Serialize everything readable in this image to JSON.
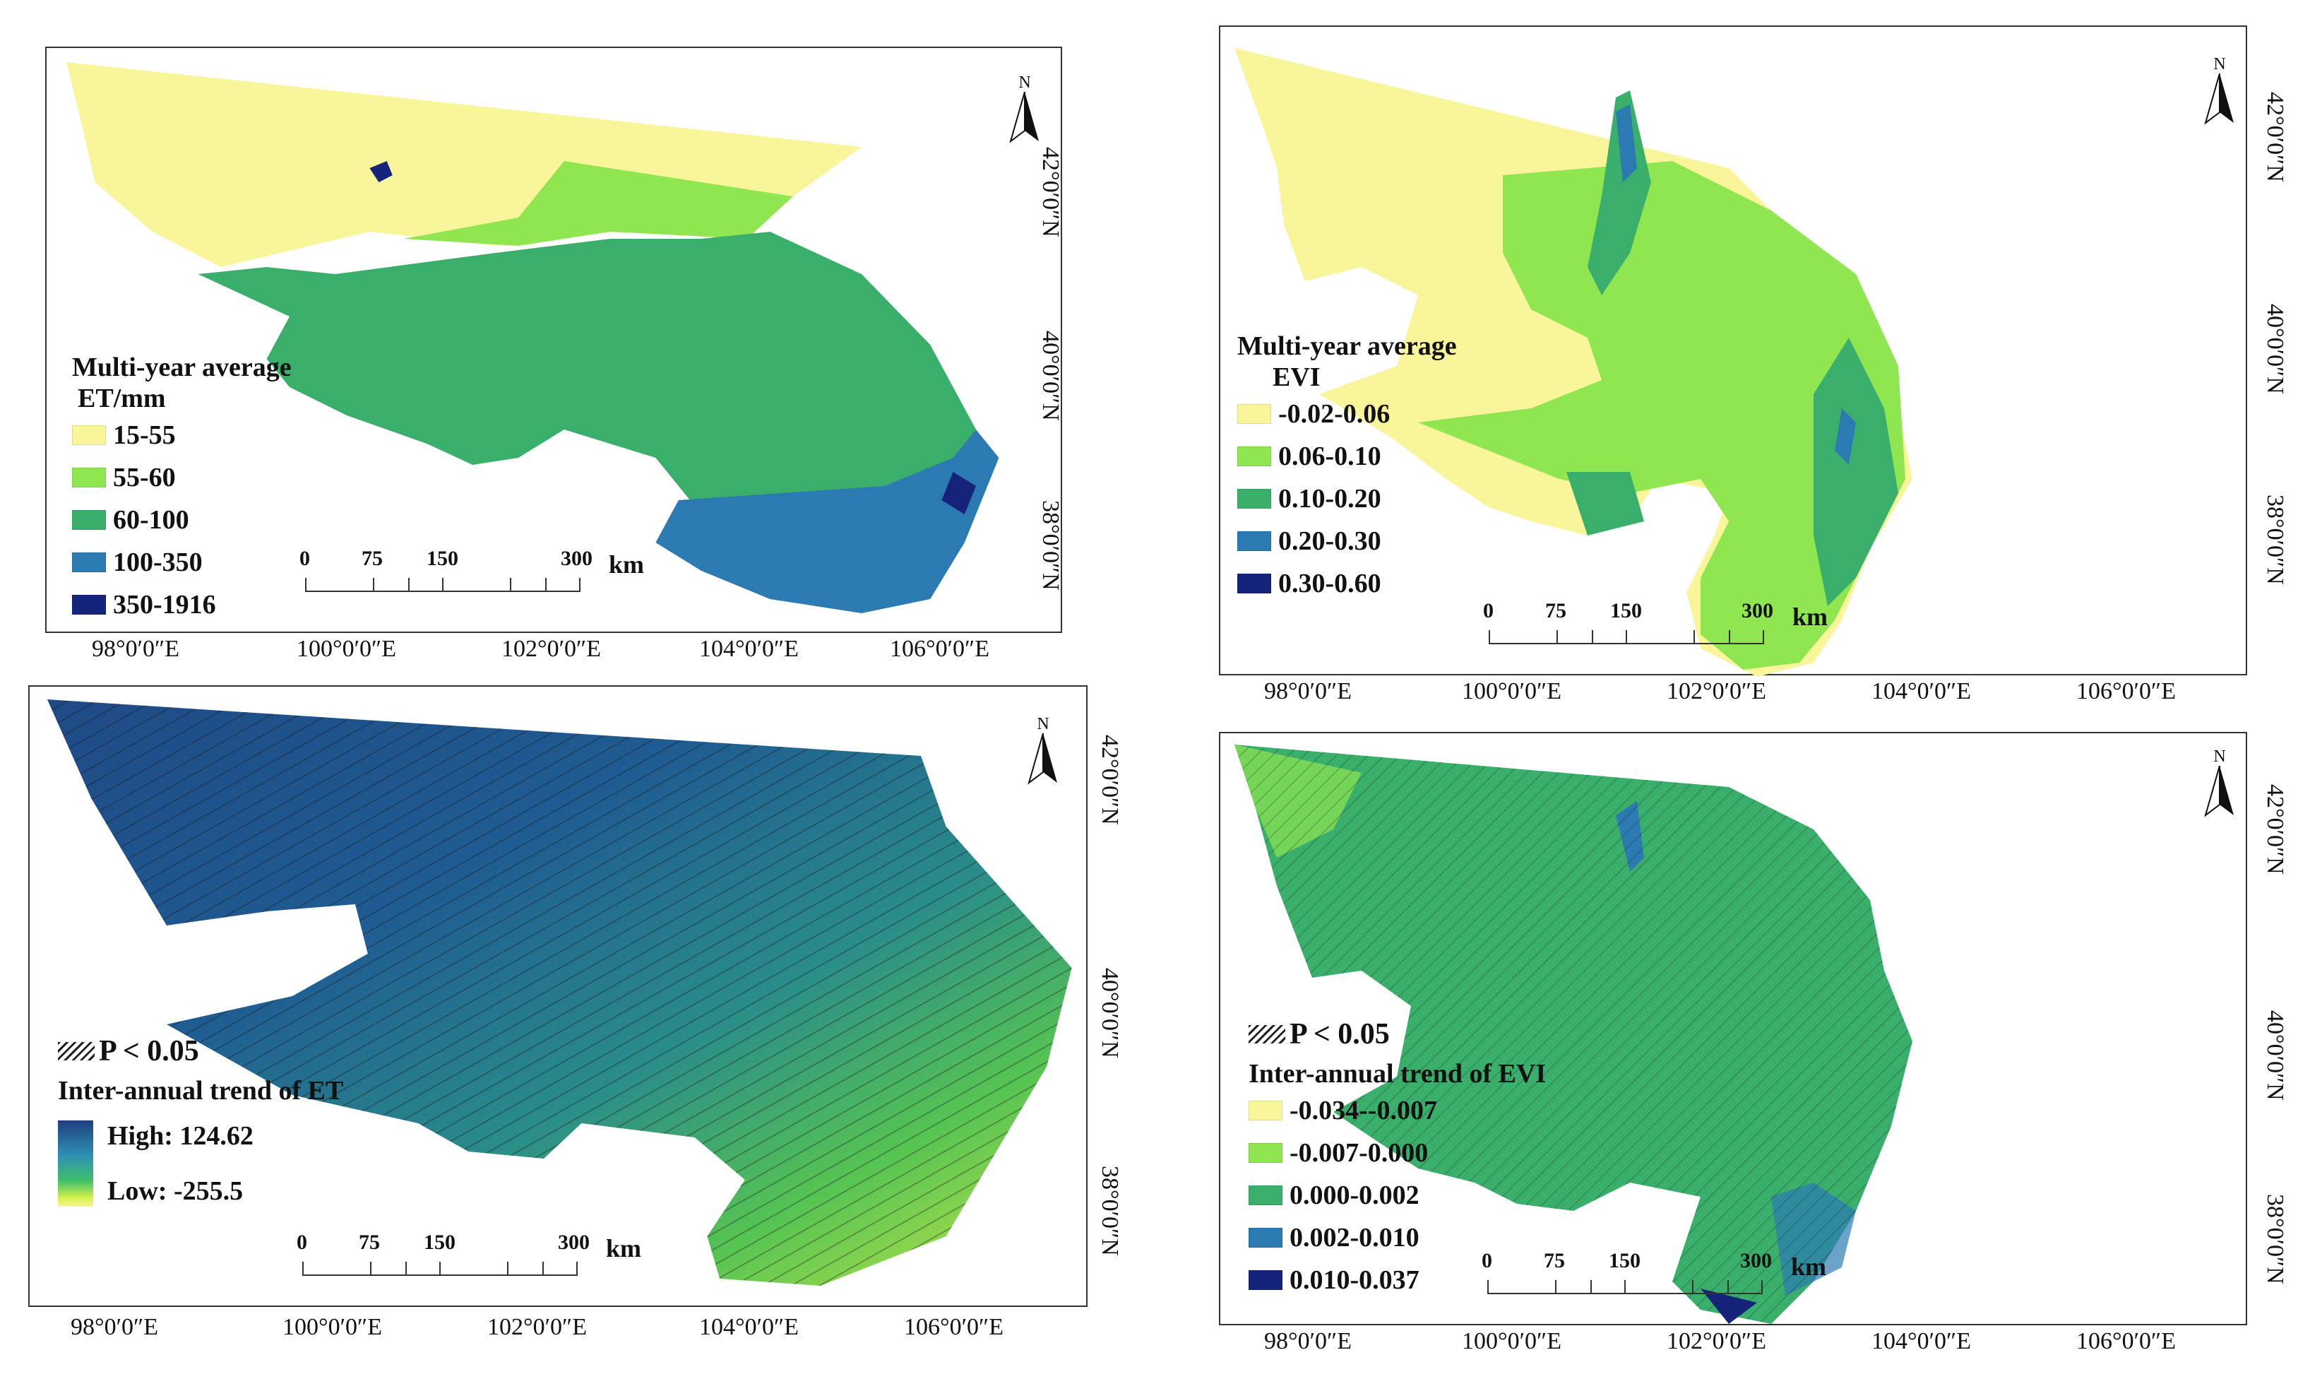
{
  "coords": {
    "lon": [
      "98°0′0″E",
      "100°0′0″E",
      "102°0′0″E",
      "104°0′0″E",
      "106°0′0″E"
    ],
    "lat": [
      "42°0′0″N",
      "40°0′0″N",
      "38°0′0″N"
    ]
  },
  "north_label": "N",
  "scale": {
    "ticks": [
      "0",
      "75",
      "150",
      "300"
    ],
    "unit": "km"
  },
  "panels": {
    "a": {
      "legend_title_line1": "Multi-year average",
      "legend_title_line2": "ET/mm",
      "classes": [
        {
          "label": "15-55",
          "color": "#f9f59b"
        },
        {
          "label": "55-60",
          "color": "#8fe651"
        },
        {
          "label": "60-100",
          "color": "#3aaf6c"
        },
        {
          "label": "100-350",
          "color": "#2b7ab2"
        },
        {
          "label": "350-1916",
          "color": "#15247a"
        }
      ]
    },
    "b": {
      "legend_title_line1": "Multi-year average",
      "legend_title_line2": "EVI",
      "classes": [
        {
          "label": "-0.02-0.06",
          "color": "#f9f59b"
        },
        {
          "label": "0.06-0.10",
          "color": "#8fe651"
        },
        {
          "label": "0.10-0.20",
          "color": "#3aaf6c"
        },
        {
          "label": "0.20-0.30",
          "color": "#2b7ab2"
        },
        {
          "label": "0.30-0.60",
          "color": "#15247a"
        }
      ]
    },
    "c": {
      "significance": "P < 0.05",
      "legend_title": "Inter-annual trend of ET",
      "high": "High: 124.62",
      "low": "Low: -255.5"
    },
    "d": {
      "significance": "P < 0.05",
      "legend_title": "Inter-annual trend of EVI",
      "classes": [
        {
          "label": "-0.034--0.007",
          "color": "#f9f59b"
        },
        {
          "label": "-0.007-0.000",
          "color": "#8fe651"
        },
        {
          "label": "0.000-0.002",
          "color": "#3aaf6c"
        },
        {
          "label": "0.002-0.010",
          "color": "#2b7ab2"
        },
        {
          "label": "0.010-0.037",
          "color": "#15247a"
        }
      ]
    }
  }
}
